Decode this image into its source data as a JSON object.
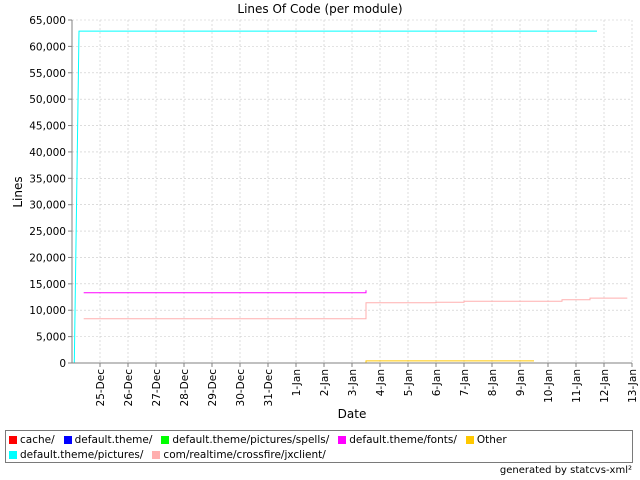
{
  "chart_data": {
    "type": "line",
    "title": "Lines Of Code (per module)",
    "xlabel": "Date",
    "ylabel": "Lines",
    "ylim": [
      0,
      65000
    ],
    "xlim": [
      "2007-12-24T00:00",
      "2008-01-13T00:00"
    ],
    "y_ticks": [
      "0",
      "5,000",
      "10,000",
      "15,000",
      "20,000",
      "25,000",
      "30,000",
      "35,000",
      "40,000",
      "45,000",
      "50,000",
      "55,000",
      "60,000",
      "65,000"
    ],
    "x_ticks": [
      "25-Dec",
      "26-Dec",
      "27-Dec",
      "28-Dec",
      "29-Dec",
      "30-Dec",
      "31-Dec",
      "1-Jan",
      "2-Jan",
      "3-Jan",
      "4-Jan",
      "5-Jan",
      "6-Jan",
      "7-Jan",
      "8-Jan",
      "9-Jan",
      "10-Jan",
      "11-Jan",
      "12-Jan",
      "13-Jan"
    ],
    "grid": true,
    "legend_position": "bottom",
    "series": [
      {
        "name": "cache/",
        "color": "#ff0000",
        "points": []
      },
      {
        "name": "default.theme/",
        "color": "#0000ff",
        "points": []
      },
      {
        "name": "default.theme/pictures/spells/",
        "color": "#00ff00",
        "points": []
      },
      {
        "name": "default.theme/fonts/",
        "color": "#ff00ff",
        "points": [
          [
            "2007-12-24T10:00",
            13300
          ],
          [
            "2008-01-03T12:00",
            13300
          ],
          [
            "2008-01-03T12:00",
            13800
          ]
        ]
      },
      {
        "name": "Other",
        "color": "#ffc800",
        "points": [
          [
            "2007-12-24T10:00",
            0
          ],
          [
            "2008-01-03T12:00",
            0
          ],
          [
            "2008-01-03T12:00",
            400
          ],
          [
            "2008-01-09T12:00",
            400
          ]
        ]
      },
      {
        "name": "default.theme/pictures/",
        "color": "#00ffff",
        "points": [
          [
            "2007-12-24T02:00",
            0
          ],
          [
            "2007-12-24T06:00",
            62900
          ],
          [
            "2008-01-11T18:00",
            62900
          ]
        ]
      },
      {
        "name": "com/realtime/crossfire/jxclient/",
        "color": "#ffafaf",
        "points": [
          [
            "2007-12-24T10:00",
            8400
          ],
          [
            "2008-01-03T12:00",
            8400
          ],
          [
            "2008-01-03T12:00",
            11400
          ],
          [
            "2008-01-06T00:00",
            11400
          ],
          [
            "2008-01-06T00:00",
            11500
          ],
          [
            "2008-01-07T00:00",
            11500
          ],
          [
            "2008-01-07T00:00",
            11700
          ],
          [
            "2008-01-10T12:00",
            11700
          ],
          [
            "2008-01-10T12:00",
            12000
          ],
          [
            "2008-01-11T12:00",
            12000
          ],
          [
            "2008-01-11T12:00",
            12300
          ],
          [
            "2008-01-12T20:00",
            12300
          ]
        ]
      }
    ]
  },
  "footer": {
    "text": "generated by statcvs-xml²"
  }
}
